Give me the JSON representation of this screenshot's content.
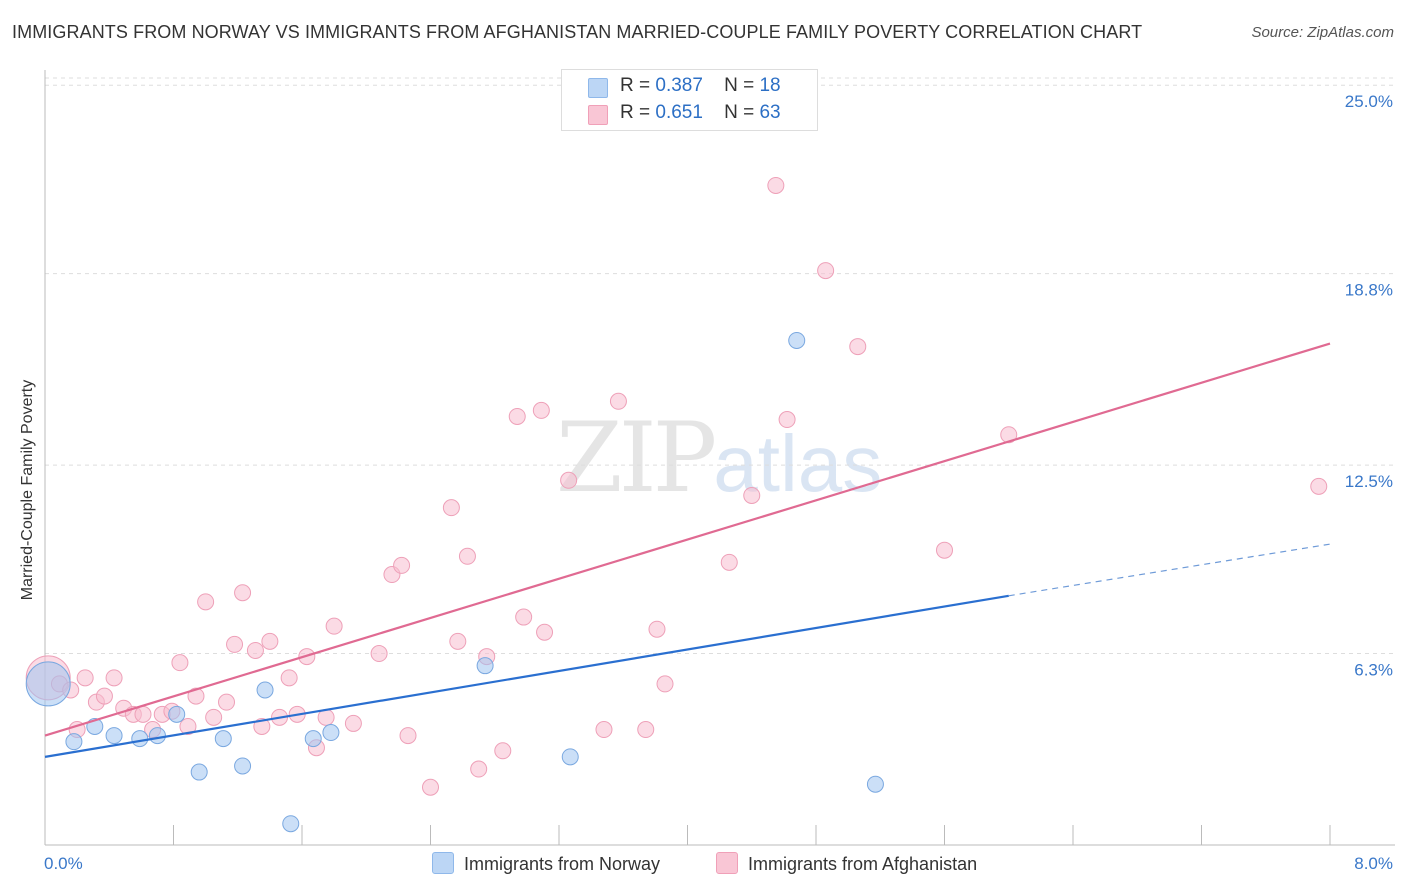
{
  "title": "IMMIGRANTS FROM NORWAY VS IMMIGRANTS FROM AFGHANISTAN MARRIED-COUPLE FAMILY POVERTY CORRELATION CHART",
  "source": "Source: ZipAtlas.com",
  "watermark": {
    "part1": "ZIP",
    "part2": "atlas"
  },
  "legend": {
    "series": [
      {
        "name": "Immigrants from Norway",
        "r_label": "R =",
        "r_value": "0.387",
        "n_label": "N =",
        "n_value": "18",
        "color": "#8fb8ea",
        "fill": "#bcd6f5"
      },
      {
        "name": "Immigrants from Afghanistan",
        "r_label": "R =",
        "r_value": "0.651",
        "n_label": "N =",
        "n_value": "63",
        "color": "#f0a0b8",
        "fill": "#f9c6d5"
      }
    ]
  },
  "chart_data": {
    "type": "scatter",
    "title": "IMMIGRANTS FROM NORWAY VS IMMIGRANTS FROM AFGHANISTAN MARRIED-COUPLE FAMILY POVERTY CORRELATION CHART",
    "xlabel": "",
    "ylabel": "Married-Couple Family Poverty",
    "xlim": [
      0,
      8
    ],
    "ylim": [
      0,
      25.5
    ],
    "x_tick_labels": [
      "0.0%",
      "8.0%"
    ],
    "y_ticks": [
      6.3,
      12.5,
      18.8,
      25.0
    ],
    "y_tick_labels": [
      "6.3%",
      "12.5%",
      "18.8%",
      "25.0%"
    ],
    "grid": true,
    "series": [
      {
        "name": "Immigrants from Norway",
        "color": "#2a6fd0",
        "trend": {
          "x0": 0,
          "y0": 2.9,
          "x1": 6.0,
          "y1": 8.2,
          "dash_x1": 8.0,
          "dash_y1": 9.9
        },
        "points": [
          {
            "x": 0.02,
            "y": 5.3,
            "big": true
          },
          {
            "x": 0.18,
            "y": 3.4
          },
          {
            "x": 0.31,
            "y": 3.9
          },
          {
            "x": 0.43,
            "y": 3.6
          },
          {
            "x": 0.59,
            "y": 3.5
          },
          {
            "x": 0.7,
            "y": 3.6
          },
          {
            "x": 0.82,
            "y": 4.3
          },
          {
            "x": 0.96,
            "y": 2.4
          },
          {
            "x": 1.11,
            "y": 3.5
          },
          {
            "x": 1.23,
            "y": 2.6
          },
          {
            "x": 1.37,
            "y": 5.1
          },
          {
            "x": 1.53,
            "y": 0.7
          },
          {
            "x": 1.67,
            "y": 3.5
          },
          {
            "x": 1.78,
            "y": 3.7
          },
          {
            "x": 2.74,
            "y": 5.9
          },
          {
            "x": 3.27,
            "y": 2.9
          },
          {
            "x": 4.68,
            "y": 16.6
          },
          {
            "x": 5.17,
            "y": 2.0
          }
        ]
      },
      {
        "name": "Immigrants from Afghanistan",
        "color": "#e06a92",
        "trend": {
          "x0": 0,
          "y0": 3.6,
          "x1": 8.0,
          "y1": 16.5
        },
        "points": [
          {
            "x": 0.02,
            "y": 5.5,
            "big": true
          },
          {
            "x": 0.09,
            "y": 5.3
          },
          {
            "x": 0.16,
            "y": 5.1
          },
          {
            "x": 0.2,
            "y": 3.8
          },
          {
            "x": 0.25,
            "y": 5.5
          },
          {
            "x": 0.32,
            "y": 4.7
          },
          {
            "x": 0.37,
            "y": 4.9
          },
          {
            "x": 0.43,
            "y": 5.5
          },
          {
            "x": 0.49,
            "y": 4.5
          },
          {
            "x": 0.55,
            "y": 4.3
          },
          {
            "x": 0.61,
            "y": 4.3
          },
          {
            "x": 0.67,
            "y": 3.8
          },
          {
            "x": 0.73,
            "y": 4.3
          },
          {
            "x": 0.79,
            "y": 4.4
          },
          {
            "x": 0.84,
            "y": 6.0
          },
          {
            "x": 0.89,
            "y": 3.9
          },
          {
            "x": 0.94,
            "y": 4.9
          },
          {
            "x": 1.0,
            "y": 8.0
          },
          {
            "x": 1.05,
            "y": 4.2
          },
          {
            "x": 1.13,
            "y": 4.7
          },
          {
            "x": 1.18,
            "y": 6.6
          },
          {
            "x": 1.23,
            "y": 8.3
          },
          {
            "x": 1.31,
            "y": 6.4
          },
          {
            "x": 1.35,
            "y": 3.9
          },
          {
            "x": 1.4,
            "y": 6.7
          },
          {
            "x": 1.46,
            "y": 4.2
          },
          {
            "x": 1.52,
            "y": 5.5
          },
          {
            "x": 1.57,
            "y": 4.3
          },
          {
            "x": 1.63,
            "y": 6.2
          },
          {
            "x": 1.69,
            "y": 3.2
          },
          {
            "x": 1.75,
            "y": 4.2
          },
          {
            "x": 1.8,
            "y": 7.2
          },
          {
            "x": 1.92,
            "y": 4.0
          },
          {
            "x": 2.08,
            "y": 6.3
          },
          {
            "x": 2.16,
            "y": 8.9
          },
          {
            "x": 2.22,
            "y": 9.2
          },
          {
            "x": 2.26,
            "y": 3.6
          },
          {
            "x": 2.4,
            "y": 1.9
          },
          {
            "x": 2.53,
            "y": 11.1
          },
          {
            "x": 2.57,
            "y": 6.7
          },
          {
            "x": 2.63,
            "y": 9.5
          },
          {
            "x": 2.7,
            "y": 2.5
          },
          {
            "x": 2.75,
            "y": 6.2
          },
          {
            "x": 2.85,
            "y": 3.1
          },
          {
            "x": 2.94,
            "y": 14.1
          },
          {
            "x": 2.98,
            "y": 7.5
          },
          {
            "x": 3.11,
            "y": 7.0
          },
          {
            "x": 3.09,
            "y": 14.3
          },
          {
            "x": 3.26,
            "y": 12.0
          },
          {
            "x": 3.57,
            "y": 14.6
          },
          {
            "x": 3.48,
            "y": 3.8
          },
          {
            "x": 3.74,
            "y": 3.8
          },
          {
            "x": 3.81,
            "y": 7.1
          },
          {
            "x": 3.86,
            "y": 5.3
          },
          {
            "x": 4.26,
            "y": 9.3
          },
          {
            "x": 4.4,
            "y": 11.5
          },
          {
            "x": 4.55,
            "y": 21.7
          },
          {
            "x": 4.62,
            "y": 14.0
          },
          {
            "x": 4.86,
            "y": 18.9
          },
          {
            "x": 5.06,
            "y": 16.4
          },
          {
            "x": 5.6,
            "y": 9.7
          },
          {
            "x": 6.0,
            "y": 13.5
          },
          {
            "x": 7.93,
            "y": 11.8
          }
        ]
      }
    ]
  },
  "bottom_legend": {
    "series1": "Immigrants from Norway",
    "series2": "Immigrants from Afghanistan"
  }
}
